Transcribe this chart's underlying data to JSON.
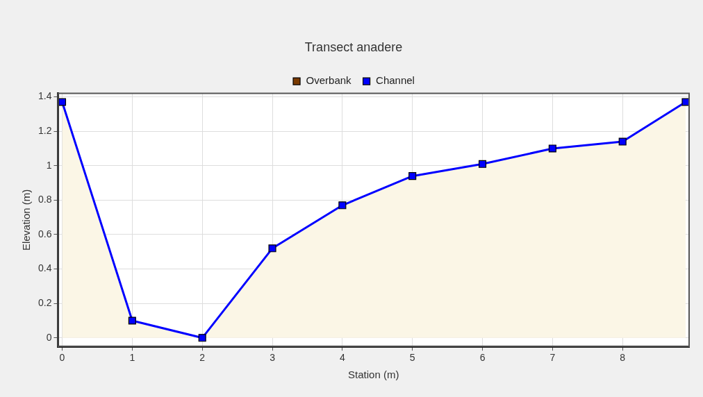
{
  "chart_data": {
    "type": "area",
    "title": "Transect anadere",
    "xlabel": "Station (m)",
    "ylabel": "Elevation (m)",
    "x": [
      0,
      1,
      2,
      3,
      4,
      5,
      6,
      7,
      8,
      8.9
    ],
    "series": [
      {
        "name": "Overbank",
        "type": "line",
        "color": "#7a3a00",
        "values": [
          null,
          null,
          null,
          null,
          null,
          null,
          null,
          null,
          null,
          null
        ]
      },
      {
        "name": "Channel",
        "color": "#0000ff",
        "values": [
          1.37,
          0.1,
          0,
          0.52,
          0.77,
          0.94,
          1.01,
          1.1,
          1.14,
          1.37
        ]
      }
    ],
    "xlim": [
      -0.06,
      8.95
    ],
    "xticks": [
      0,
      1,
      2,
      3,
      4,
      5,
      6,
      7,
      8
    ],
    "ylim": [
      -0.05,
      1.42
    ],
    "yticks": [
      0,
      0.2,
      0.4,
      0.6,
      0.8,
      1,
      1.2,
      1.4
    ],
    "grid": true,
    "legend": "top",
    "marker": "square",
    "line_style": "solid"
  }
}
